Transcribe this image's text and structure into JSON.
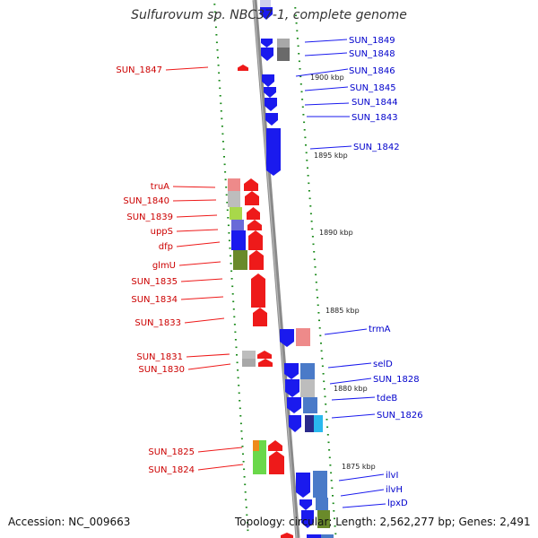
{
  "title": "Sulfurovum sp. NBC37-1, complete genome",
  "footer": {
    "accession": "Accession: NC_009663",
    "stats": "Topology: circular; Length: 2,562,277 bp; Genes: 2,491"
  },
  "kbp_markers": [
    "1900 kbp",
    "1895 kbp",
    "1890 kbp",
    "1885 kbp",
    "1880 kbp",
    "1875 kbp"
  ],
  "genes_left": [
    "SUN_1847",
    "truA",
    "SUN_1840",
    "SUN_1839",
    "uppS",
    "dfp",
    "glmU",
    "SUN_1835",
    "SUN_1834",
    "SUN_1833",
    "SUN_1831",
    "SUN_1830",
    "SUN_1825",
    "SUN_1824"
  ],
  "genes_right": [
    "SUN_1849",
    "SUN_1848",
    "SUN_1846",
    "SUN_1845",
    "SUN_1844",
    "SUN_1843",
    "SUN_1842",
    "trmA",
    "selD",
    "SUN_1828",
    "tdeB",
    "SUN_1826",
    "ilvI",
    "ilvH",
    "lpxD"
  ],
  "colors": {
    "backbone": "#8a8a8a",
    "forward_strand": "#1a1aee",
    "reverse_strand": "#ee1a1a",
    "left_label": "#cc0000",
    "right_label": "#0000cc",
    "gc_ticks": "#1a8a1a",
    "cog_pink": "#ee8a8a",
    "cog_gray": "#bdbdbd",
    "cog_blue": "#4a7ac8",
    "cog_olive": "#6a8a2a",
    "cog_green": "#6ad84a"
  }
}
